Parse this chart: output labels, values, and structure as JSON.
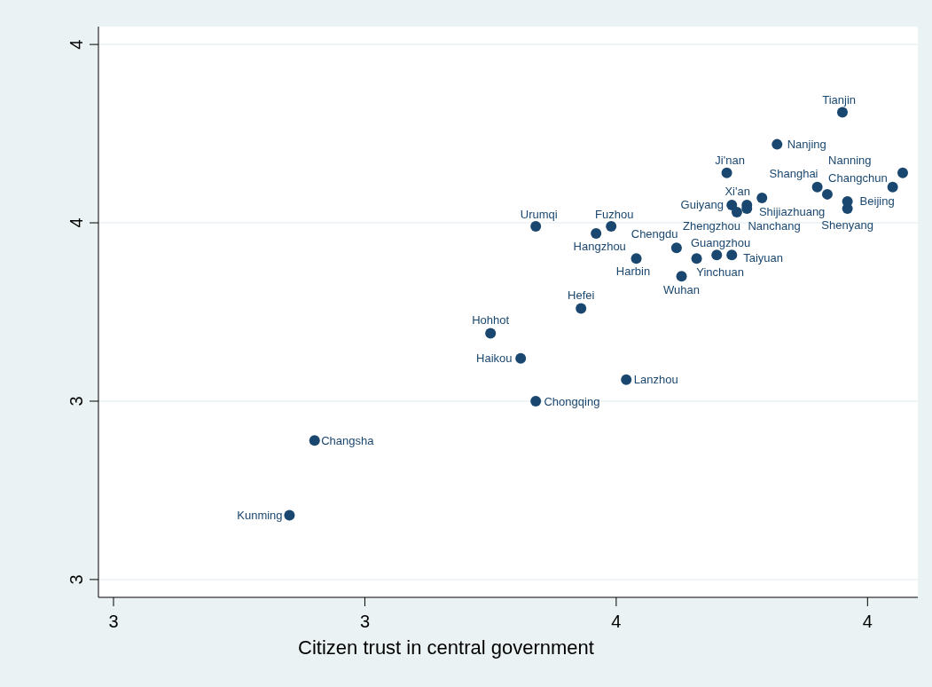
{
  "chart_data": {
    "type": "scatter",
    "xlabel": "Citizen trust in central government",
    "x": [
      3.95,
      3.82,
      3.72,
      4.07,
      3.9,
      4.05,
      3.92,
      3.96,
      3.96,
      3.79,
      3.76,
      3.73,
      3.76,
      3.74,
      3.62,
      3.66,
      3.7,
      3.73,
      3.63,
      3.54,
      3.34,
      3.49,
      3.46,
      3.43,
      3.25,
      3.31,
      3.52,
      3.34,
      2.9,
      2.85
    ],
    "values": [
      3.81,
      3.72,
      3.64,
      3.64,
      3.6,
      3.6,
      3.58,
      3.56,
      3.54,
      3.57,
      3.55,
      3.55,
      3.54,
      3.53,
      3.43,
      3.4,
      3.41,
      3.41,
      3.35,
      3.4,
      3.49,
      3.49,
      3.47,
      3.26,
      3.19,
      3.12,
      3.06,
      3.0,
      2.89,
      2.68
    ],
    "value_labels": [
      "Tianjin",
      "Nanjing",
      "Ji'nan",
      null,
      "Shanghai",
      "Changchun",
      "Nanning",
      "Beijing",
      "Shenyang",
      "Shijiazhuang",
      "Xi'an",
      "Guiyang",
      "Nanchang",
      "Zhengzhou",
      "Chengdu",
      "Yinchuan",
      "Guangzhou",
      "Taiyuan",
      "Wuhan",
      "Harbin",
      "Urumqi",
      "Fuzhou",
      "Hangzhou",
      "Hefei",
      "Hohhot",
      "Haikou",
      "Lanzhou",
      "Chongqing",
      "Changsha",
      "Kunming"
    ],
    "color": "#1a476f",
    "marker": "circle",
    "grid": "y",
    "xlim": [
      2.47,
      4.1
    ],
    "xticks": [
      {
        "value": 2.5,
        "label": "3"
      },
      {
        "value": 3,
        "label": "3"
      },
      {
        "value": 3.5,
        "label": "4"
      },
      {
        "value": 4,
        "label": "4"
      }
    ],
    "ylim": [
      2.45,
      4.05
    ],
    "yticks": [
      {
        "value": 2.5,
        "label": "3"
      },
      {
        "value": 3,
        "label": "3"
      },
      {
        "value": 3.5,
        "label": "4"
      },
      {
        "value": 4,
        "label": "4"
      }
    ]
  }
}
